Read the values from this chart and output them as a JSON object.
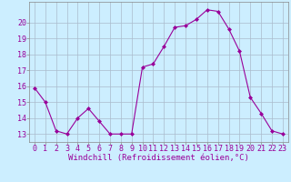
{
  "x": [
    0,
    1,
    2,
    3,
    4,
    5,
    6,
    7,
    8,
    9,
    10,
    11,
    12,
    13,
    14,
    15,
    16,
    17,
    18,
    19,
    20,
    21,
    22,
    23
  ],
  "y": [
    15.9,
    15.0,
    13.2,
    13.0,
    14.0,
    14.6,
    13.8,
    13.0,
    13.0,
    13.0,
    17.2,
    17.4,
    18.5,
    19.7,
    19.8,
    20.2,
    20.8,
    20.7,
    19.6,
    18.2,
    15.3,
    14.3,
    13.2,
    13.0
  ],
  "line_color": "#990099",
  "marker": "D",
  "marker_size": 2,
  "bg_color": "#cceeff",
  "grid_color": "#aabbcc",
  "xlabel": "Windchill (Refroidissement éolien,°C)",
  "xlabel_color": "#990099",
  "xlabel_fontsize": 6.5,
  "ylabel_ticks": [
    13,
    14,
    15,
    16,
    17,
    18,
    19,
    20
  ],
  "ylim": [
    12.5,
    21.3
  ],
  "xlim": [
    -0.5,
    23.5
  ],
  "tick_color": "#990099",
  "tick_fontsize": 6,
  "spine_color": "#888888",
  "line_width": 0.8
}
